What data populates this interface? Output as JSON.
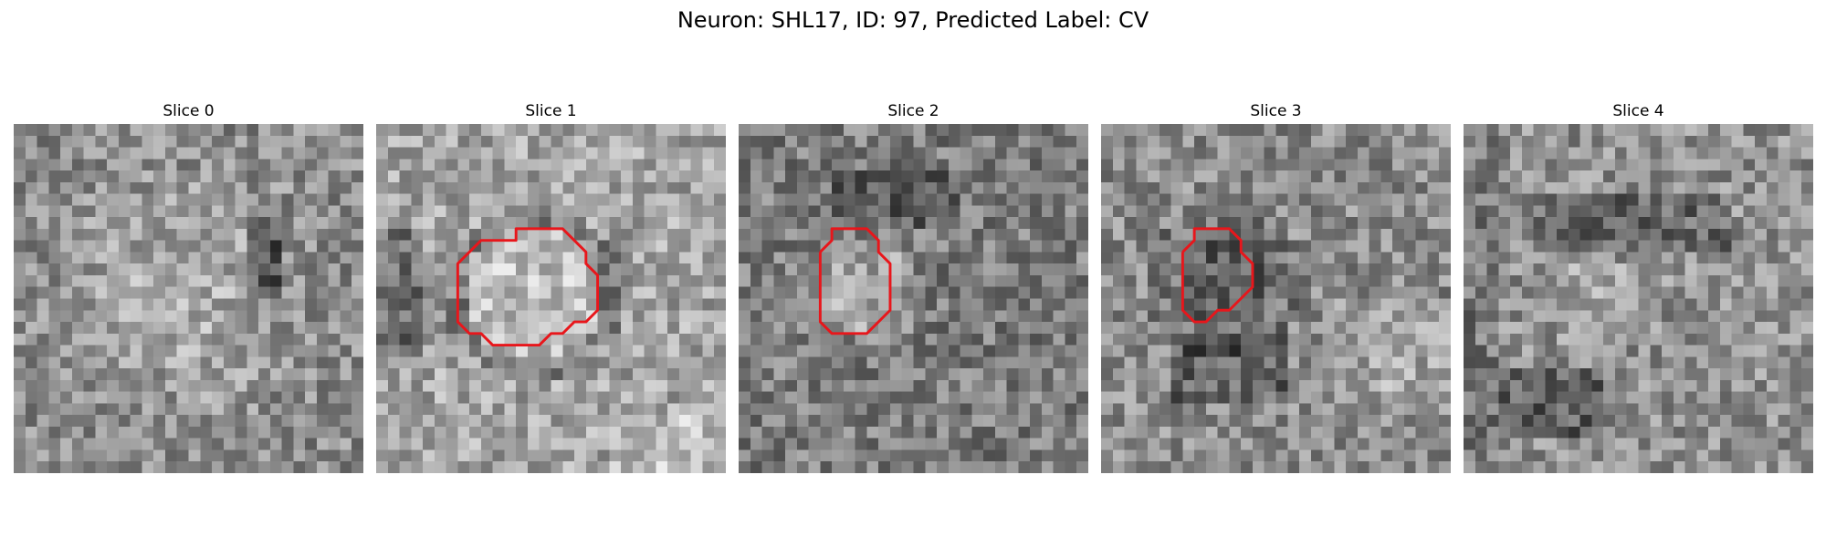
{
  "figure": {
    "title": "Neuron: SHL17, ID: 97, Predicted Label: CV"
  },
  "contour_color": "#e8161b",
  "panels": [
    {
      "title": "Slice 0",
      "contour": null,
      "appearance": "noisy grayscale, medium brightness, brighter center, darker streak on right"
    },
    {
      "title": "Slice 1",
      "contour": [
        [
          11,
          10
        ],
        [
          12,
          10
        ],
        [
          12,
          9
        ],
        [
          16,
          9
        ],
        [
          18,
          11
        ],
        [
          18,
          12
        ],
        [
          19,
          13
        ],
        [
          19,
          15
        ],
        [
          19,
          16
        ],
        [
          18,
          17
        ],
        [
          17,
          17
        ],
        [
          16,
          18
        ],
        [
          15,
          18
        ],
        [
          14,
          19
        ],
        [
          10,
          19
        ],
        [
          9,
          18
        ],
        [
          8,
          18
        ],
        [
          7,
          17
        ],
        [
          7,
          12
        ],
        [
          8,
          11
        ],
        [
          9,
          10
        ],
        [
          11,
          10
        ]
      ],
      "appearance": "bright round region inside contour, dark band on left"
    },
    {
      "title": "Slice 2",
      "contour": [
        [
          7,
          11
        ],
        [
          8,
          10
        ],
        [
          8,
          9
        ],
        [
          11,
          9
        ],
        [
          12,
          10
        ],
        [
          12,
          11
        ],
        [
          13,
          12
        ],
        [
          13,
          16
        ],
        [
          12,
          17
        ],
        [
          11,
          18
        ],
        [
          8,
          18
        ],
        [
          7,
          17
        ],
        [
          7,
          11
        ]
      ],
      "appearance": "grey round region inside contour, dark surroundings"
    },
    {
      "title": "Slice 3",
      "contour": [
        [
          7,
          11
        ],
        [
          8,
          10
        ],
        [
          8,
          9
        ],
        [
          11,
          9
        ],
        [
          12,
          10
        ],
        [
          12,
          11
        ],
        [
          13,
          12
        ],
        [
          13,
          14
        ],
        [
          12,
          15
        ],
        [
          11,
          16
        ],
        [
          10,
          16
        ],
        [
          9,
          17
        ],
        [
          8,
          17
        ],
        [
          7,
          16
        ],
        [
          7,
          11
        ]
      ],
      "appearance": "dark region inside contour, dark patches below"
    },
    {
      "title": "Slice 4",
      "contour": null,
      "appearance": "noisy grayscale, dark band near top and bottom left"
    }
  ]
}
